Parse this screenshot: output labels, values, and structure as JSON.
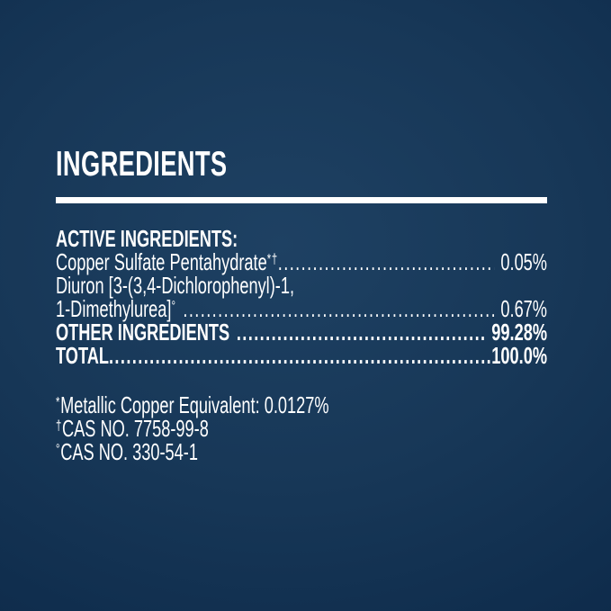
{
  "colors": {
    "background_center": "#1e4163",
    "background_edge": "#0b2544",
    "text": "#ffffff",
    "divider": "#ffffff"
  },
  "label": {
    "title": "INGREDIENTS",
    "active_heading": "ACTIVE INGREDIENTS:",
    "rows": [
      {
        "name": "Copper Sulfate Pentahydrate",
        "markers": "*†",
        "value": "0.05%"
      },
      {
        "name": "Diuron [3-(3,4-Dichlorophenyl)-1,",
        "markers": "",
        "value": ""
      },
      {
        "name": "1-Dimethylurea]",
        "markers": "°",
        "value": "0.67%"
      },
      {
        "name": "OTHER INGREDIENTS",
        "markers": "",
        "value": "99.28%"
      },
      {
        "name": "TOTAL",
        "markers": "",
        "value": "100.0%"
      }
    ],
    "footnotes": [
      {
        "marker": "*",
        "text": "Metallic Copper Equivalent: 0.0127%"
      },
      {
        "marker": "†",
        "text": "CAS NO. 7758-99-8"
      },
      {
        "marker": "°",
        "text": "CAS NO. 330-54-1"
      }
    ]
  }
}
